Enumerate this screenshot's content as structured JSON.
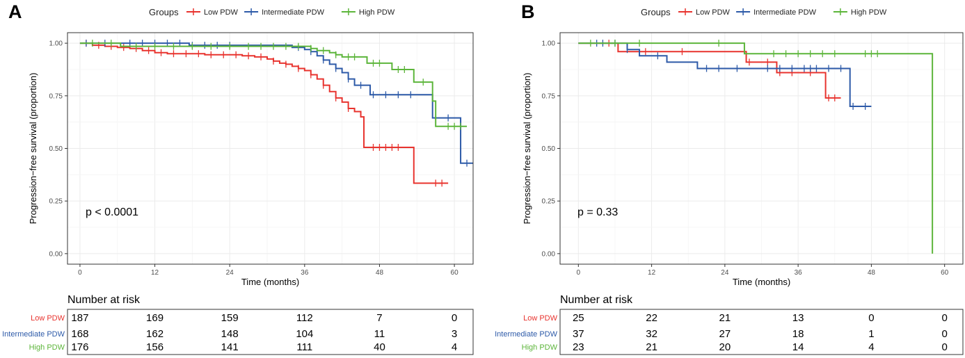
{
  "chart_data": [
    {
      "type": "line",
      "panel_label": "A",
      "xlabel": "Time (months)",
      "ylabel": "Progression−free survival (proportion)",
      "xlim": [
        -2,
        63
      ],
      "ylim": [
        -0.05,
        1.05
      ],
      "xticks": [
        0,
        12,
        24,
        36,
        48,
        60
      ],
      "yticks": [
        0.0,
        0.25,
        0.5,
        0.75,
        1.0
      ],
      "ytick_labels": [
        "0.00",
        "0.25",
        "0.50",
        "0.75",
        "1.00"
      ],
      "legend_title": "Groups",
      "annotation": "p < 0.0001",
      "risk_title": "Number at risk",
      "series": [
        {
          "name": "Low PDW",
          "color": "#e8332e",
          "steps": [
            [
              0,
              1.0
            ],
            [
              2,
              0.99
            ],
            [
              4,
              0.985
            ],
            [
              6,
              0.98
            ],
            [
              8,
              0.975
            ],
            [
              10,
              0.965
            ],
            [
              12,
              0.955
            ],
            [
              14,
              0.95
            ],
            [
              20,
              0.945
            ],
            [
              26,
              0.94
            ],
            [
              28,
              0.935
            ],
            [
              30,
              0.925
            ],
            [
              31,
              0.915
            ],
            [
              32,
              0.905
            ],
            [
              33,
              0.9
            ],
            [
              34,
              0.89
            ],
            [
              35,
              0.88
            ],
            [
              36,
              0.87
            ],
            [
              37,
              0.85
            ],
            [
              38,
              0.83
            ],
            [
              39,
              0.8
            ],
            [
              40,
              0.77
            ],
            [
              41,
              0.74
            ],
            [
              42,
              0.72
            ],
            [
              43,
              0.69
            ],
            [
              44,
              0.675
            ],
            [
              45,
              0.65
            ],
            [
              45.5,
              0.505
            ],
            [
              53,
              0.505
            ],
            [
              53.5,
              0.335
            ],
            [
              59,
              0.335
            ]
          ],
          "censor_times": [
            1,
            3,
            5,
            7,
            9,
            11,
            13,
            15,
            17,
            19,
            21,
            23,
            25,
            27,
            29,
            31,
            33,
            35,
            37,
            39,
            41,
            43,
            47,
            48,
            49,
            50,
            51,
            57,
            58
          ],
          "risk": [
            187,
            169,
            159,
            112,
            7,
            0
          ]
        },
        {
          "name": "Intermediate PDW",
          "color": "#2d5aa8",
          "steps": [
            [
              0,
              1.0
            ],
            [
              17,
              1.0
            ],
            [
              17.5,
              0.99
            ],
            [
              33,
              0.99
            ],
            [
              34,
              0.98
            ],
            [
              36,
              0.97
            ],
            [
              37,
              0.96
            ],
            [
              38,
              0.94
            ],
            [
              39,
              0.92
            ],
            [
              40,
              0.9
            ],
            [
              41,
              0.88
            ],
            [
              42,
              0.86
            ],
            [
              43,
              0.83
            ],
            [
              44,
              0.8
            ],
            [
              46,
              0.8
            ],
            [
              46.5,
              0.755
            ],
            [
              56,
              0.755
            ],
            [
              56.5,
              0.645
            ],
            [
              60.5,
              0.645
            ],
            [
              61,
              0.43
            ],
            [
              63,
              0.43
            ]
          ],
          "censor_times": [
            1,
            4,
            8,
            10,
            12,
            14,
            16,
            18,
            20,
            22,
            24,
            35,
            37,
            39,
            41,
            43,
            45,
            47,
            49,
            51,
            53,
            57,
            59,
            62
          ],
          "risk": [
            168,
            162,
            148,
            104,
            11,
            3
          ]
        },
        {
          "name": "High PDW",
          "color": "#5cb53a",
          "steps": [
            [
              0,
              1.0
            ],
            [
              6,
              1.0
            ],
            [
              6.5,
              0.985
            ],
            [
              36,
              0.985
            ],
            [
              37,
              0.975
            ],
            [
              38,
              0.965
            ],
            [
              40,
              0.955
            ],
            [
              41,
              0.945
            ],
            [
              42,
              0.935
            ],
            [
              45,
              0.935
            ],
            [
              46,
              0.905
            ],
            [
              49,
              0.905
            ],
            [
              50,
              0.875
            ],
            [
              53,
              0.875
            ],
            [
              53.5,
              0.815
            ],
            [
              56,
              0.815
            ],
            [
              56.5,
              0.725
            ],
            [
              57,
              0.605
            ],
            [
              62,
              0.605
            ]
          ],
          "censor_times": [
            2,
            5,
            9,
            12,
            15,
            18,
            21,
            24,
            27,
            29,
            31,
            33,
            35,
            37,
            39,
            41,
            43,
            44,
            47,
            48,
            51,
            52,
            55,
            59,
            60,
            61
          ],
          "risk": [
            176,
            156,
            141,
            111,
            40,
            4
          ]
        }
      ]
    },
    {
      "type": "line",
      "panel_label": "B",
      "xlabel": "Time (months)",
      "ylabel": "Progression−free survival (proportion)",
      "xlim": [
        -3,
        63
      ],
      "ylim": [
        -0.05,
        1.05
      ],
      "xticks": [
        0,
        12,
        24,
        36,
        48,
        60
      ],
      "yticks": [
        0.0,
        0.25,
        0.5,
        0.75,
        1.0
      ],
      "ytick_labels": [
        "0.00",
        "0.25",
        "0.50",
        "0.75",
        "1.00"
      ],
      "legend_title": "Groups",
      "annotation": "p = 0.33",
      "risk_title": "Number at risk",
      "series": [
        {
          "name": "Low PDW",
          "color": "#e8332e",
          "steps": [
            [
              0,
              1.0
            ],
            [
              6,
              1.0
            ],
            [
              6.5,
              0.96
            ],
            [
              27,
              0.96
            ],
            [
              27.5,
              0.91
            ],
            [
              32,
              0.91
            ],
            [
              32.5,
              0.86
            ],
            [
              40,
              0.86
            ],
            [
              40.5,
              0.74
            ],
            [
              43,
              0.74
            ]
          ],
          "censor_times": [
            5,
            11,
            17,
            28,
            31,
            33,
            35,
            38,
            41,
            42
          ],
          "risk": [
            25,
            22,
            21,
            13,
            0,
            0
          ]
        },
        {
          "name": "Intermediate PDW",
          "color": "#2d5aa8",
          "steps": [
            [
              0,
              1.0
            ],
            [
              7.5,
              1.0
            ],
            [
              8,
              0.97
            ],
            [
              9,
              0.97
            ],
            [
              10,
              0.94
            ],
            [
              14,
              0.94
            ],
            [
              14.5,
              0.91
            ],
            [
              19,
              0.91
            ],
            [
              19.5,
              0.88
            ],
            [
              44,
              0.88
            ],
            [
              44.5,
              0.7
            ],
            [
              48,
              0.7
            ]
          ],
          "censor_times": [
            3,
            4,
            6,
            8,
            13,
            21,
            23,
            26,
            31,
            33,
            35,
            37,
            38,
            39,
            41,
            43,
            45,
            47
          ],
          "risk": [
            37,
            32,
            27,
            18,
            1,
            0
          ]
        },
        {
          "name": "High PDW",
          "color": "#5cb53a",
          "steps": [
            [
              0,
              1.0
            ],
            [
              27,
              1.0
            ],
            [
              27.2,
              0.95
            ],
            [
              58,
              0.95
            ],
            [
              58,
              0.0
            ]
          ],
          "censor_times": [
            2,
            6,
            10,
            23,
            32,
            34,
            36,
            38,
            40,
            42,
            47,
            48,
            49
          ],
          "risk": [
            23,
            21,
            20,
            14,
            4,
            0
          ]
        }
      ]
    }
  ]
}
